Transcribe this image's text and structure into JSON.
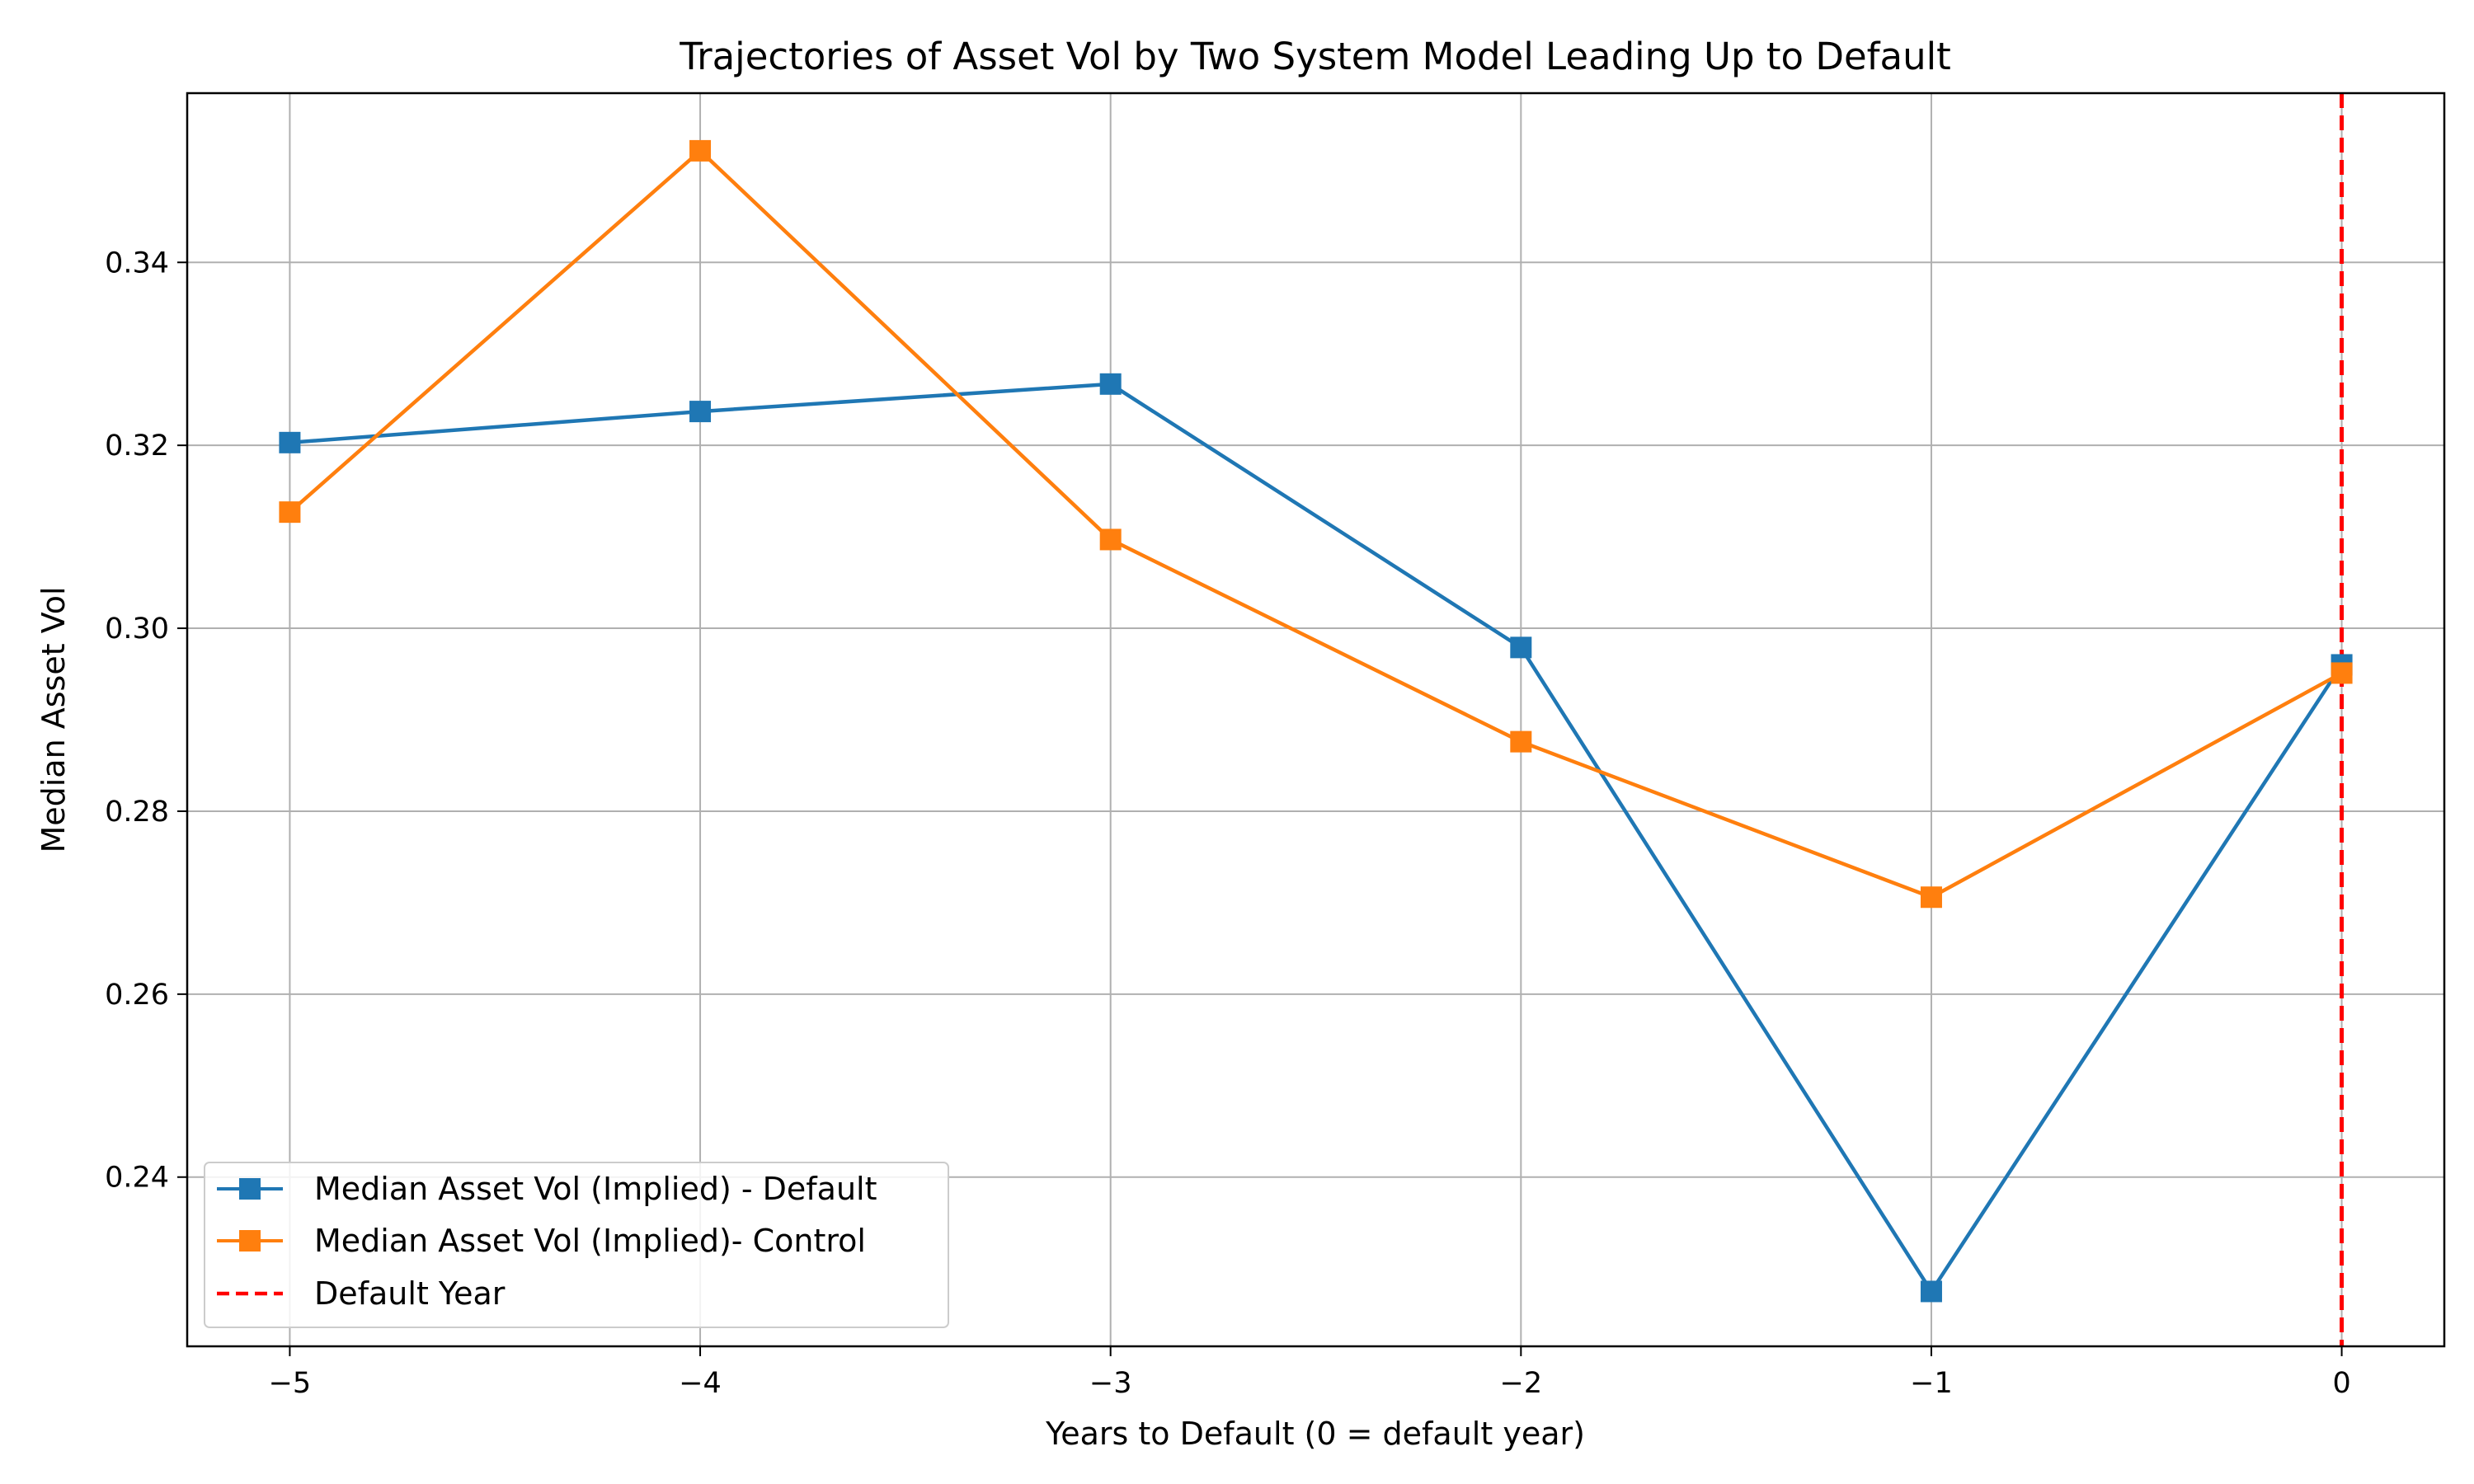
{
  "chart_data": {
    "type": "line",
    "title": "Trajectories of Asset Vol by Two System Model Leading Up to Default",
    "xlabel": "Years to Default (0 = default year)",
    "ylabel": "Median Asset Vol",
    "x": [
      -5,
      -4,
      -3,
      -2,
      -1,
      0
    ],
    "x_tick_labels": [
      "−5",
      "−4",
      "−3",
      "−2",
      "−1",
      "0"
    ],
    "y_ticks": [
      0.24,
      0.26,
      0.28,
      0.3,
      0.32,
      0.34
    ],
    "y_tick_labels": [
      "0.24",
      "0.26",
      "0.28",
      "0.30",
      "0.32",
      "0.34"
    ],
    "xlim": [
      -5.25,
      0.25
    ],
    "ylim": [
      0.2215,
      0.3585
    ],
    "grid": true,
    "legend_position": "lower-left",
    "series": [
      {
        "name": "Median Asset Vol (Implied) - Default",
        "color": "#1f77b4",
        "marker": "square",
        "values": [
          0.3203,
          0.3237,
          0.3267,
          0.2979,
          0.2275,
          0.296
        ]
      },
      {
        "name": "Median Asset Vol (Implied)- Control",
        "color": "#ff7f0e",
        "marker": "square",
        "values": [
          0.3127,
          0.3522,
          0.3097,
          0.2876,
          0.2706,
          0.2951
        ]
      }
    ],
    "vline": {
      "name": "Default Year",
      "x": 0,
      "color": "#ff0000",
      "style": "dashed"
    }
  }
}
